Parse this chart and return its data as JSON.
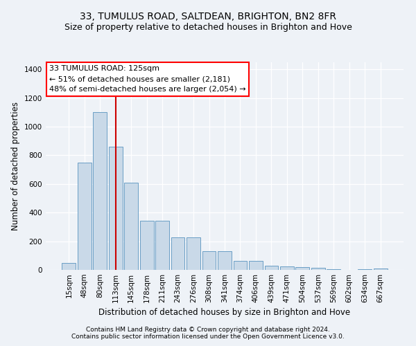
{
  "title1": "33, TUMULUS ROAD, SALTDEAN, BRIGHTON, BN2 8FR",
  "title2": "Size of property relative to detached houses in Brighton and Hove",
  "xlabel": "Distribution of detached houses by size in Brighton and Hove",
  "ylabel": "Number of detached properties",
  "footer1": "Contains HM Land Registry data © Crown copyright and database right 2024.",
  "footer2": "Contains public sector information licensed under the Open Government Licence v3.0.",
  "categories": [
    "15sqm",
    "48sqm",
    "80sqm",
    "113sqm",
    "145sqm",
    "178sqm",
    "211sqm",
    "243sqm",
    "276sqm",
    "308sqm",
    "341sqm",
    "374sqm",
    "406sqm",
    "439sqm",
    "471sqm",
    "504sqm",
    "537sqm",
    "569sqm",
    "602sqm",
    "634sqm",
    "667sqm"
  ],
  "values": [
    50,
    750,
    1100,
    860,
    610,
    345,
    345,
    225,
    225,
    130,
    130,
    65,
    65,
    30,
    25,
    20,
    15,
    5,
    0,
    5,
    10
  ],
  "bar_color": "#c9d9e8",
  "bar_edge_color": "#6a9ec5",
  "vline_x": 3,
  "vline_color": "#cc0000",
  "annotation_line1": "33 TUMULUS ROAD: 125sqm",
  "annotation_line2": "← 51% of detached houses are smaller (2,181)",
  "annotation_line3": "48% of semi-detached houses are larger (2,054) →",
  "ylim": [
    0,
    1450
  ],
  "yticks": [
    0,
    200,
    400,
    600,
    800,
    1000,
    1200,
    1400
  ],
  "background_color": "#eef2f7",
  "grid_color": "#ffffff",
  "title1_fontsize": 10,
  "title2_fontsize": 9,
  "xlabel_fontsize": 8.5,
  "ylabel_fontsize": 8.5,
  "tick_fontsize": 7.5,
  "footer_fontsize": 6.5,
  "ann_fontsize": 8
}
